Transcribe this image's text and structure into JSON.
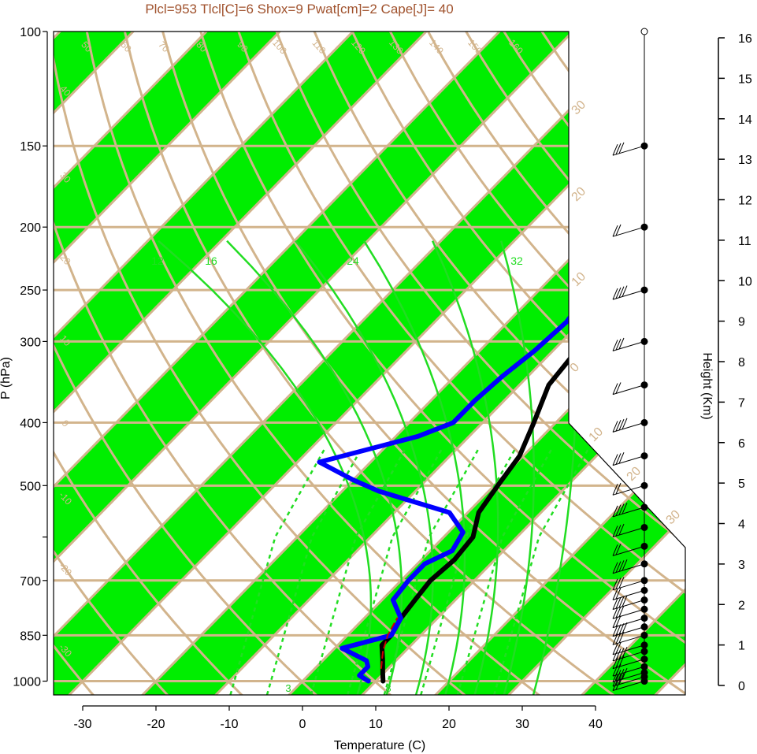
{
  "header": {
    "title": "Plcl=953 Tlcl[C]=6 Shox=9 Pwat[cm]=2 Cape[J]= 40"
  },
  "colors": {
    "stripe": "#00ee00",
    "isoline": "#d2b48c",
    "temperature": "#000000",
    "dewpoint": "#0000ff",
    "parcel": "#cc0000",
    "moist_adiabat": "#22dd22",
    "mixing_ratio": "#22dd22",
    "title": "#a0522d"
  },
  "chart_data": {
    "type": "line",
    "title": "Plcl=953 Tlcl[C]=6 Shox=9 Pwat[cm]=2 Cape[J]= 40",
    "xlabel": "Temperature (C)",
    "ylabel": "P (hPa)",
    "y2label": "Height (Km)",
    "xlim": [
      -34,
      36
    ],
    "ylim": [
      1050,
      100
    ],
    "y_scale": "log",
    "x_ticks": [
      "-30",
      "-20",
      "-10",
      "0",
      "10",
      "20",
      "30",
      "40"
    ],
    "y_ticks": [
      {
        "p": 1000,
        "label": "1000"
      },
      {
        "p": 850,
        "label": "850"
      },
      {
        "p": 700,
        "label": "700"
      },
      {
        "p": 600,
        "label": ""
      },
      {
        "p": 500,
        "label": "500"
      },
      {
        "p": 400,
        "label": "400"
      },
      {
        "p": 300,
        "label": "300"
      },
      {
        "p": 250,
        "label": "250"
      },
      {
        "p": 200,
        "label": "200"
      },
      {
        "p": 150,
        "label": "150"
      },
      {
        "p": 100,
        "label": "100"
      }
    ],
    "height_ticks": [
      "0",
      "1",
      "2",
      "3",
      "4",
      "5",
      "6",
      "7",
      "8",
      "9",
      "10",
      "11",
      "12",
      "13",
      "14",
      "15",
      "16"
    ],
    "isotherm_labels": [
      "50",
      "60",
      "70",
      "80",
      "90",
      "100",
      "110",
      "120",
      "130",
      "140",
      "150",
      "160"
    ],
    "isotherm_side_labels": [
      "40",
      "30",
      "20",
      "10",
      "0",
      "-10",
      "-20",
      "-30"
    ],
    "isotherm_right_labels": [
      "30",
      "20",
      "10",
      "0",
      "10",
      "20",
      "30"
    ],
    "mixing_labels": [
      "3",
      "8"
    ],
    "moist_labels": [
      "12",
      "16",
      "24",
      "32"
    ],
    "series": [
      {
        "name": "temperature",
        "points": [
          [
            11,
            1000
          ],
          [
            10,
            975
          ],
          [
            8,
            925
          ],
          [
            6,
            880
          ],
          [
            6,
            850
          ],
          [
            5,
            800
          ],
          [
            4.5,
            750
          ],
          [
            4,
            700
          ],
          [
            4.5,
            650
          ],
          [
            4,
            600
          ],
          [
            1.5,
            550
          ],
          [
            0.5,
            500
          ],
          [
            -0.5,
            450
          ],
          [
            -3,
            400
          ],
          [
            -6,
            350
          ],
          [
            -7,
            300
          ],
          [
            -6,
            270
          ],
          [
            -5,
            250
          ],
          [
            -3,
            230
          ],
          [
            -1,
            215
          ],
          [
            0.5,
            190
          ],
          [
            2,
            170
          ],
          [
            3,
            150
          ],
          [
            4.5,
            140
          ],
          [
            5.5,
            130
          ],
          [
            6.5,
            120
          ],
          [
            8,
            110
          ]
        ]
      },
      {
        "name": "dewpoint",
        "points": [
          [
            9,
            1000
          ],
          [
            7,
            980
          ],
          [
            7,
            950
          ],
          [
            6,
            930
          ],
          [
            1,
            890
          ],
          [
            6,
            850
          ],
          [
            5,
            800
          ],
          [
            1.5,
            750
          ],
          [
            1,
            700
          ],
          [
            1,
            660
          ],
          [
            3,
            630
          ],
          [
            2,
            590
          ],
          [
            -2.5,
            550
          ],
          [
            -15,
            510
          ],
          [
            -20,
            490
          ],
          [
            -27,
            460
          ],
          [
            -17,
            420
          ],
          [
            -14,
            400
          ],
          [
            -14,
            370
          ],
          [
            -13.5,
            340
          ],
          [
            -12.5,
            310
          ],
          [
            -12,
            280
          ],
          [
            -13,
            250
          ],
          [
            -14,
            225
          ],
          [
            -16,
            205
          ],
          [
            -18,
            195
          ],
          [
            -18,
            170
          ],
          [
            -15,
            160
          ],
          [
            -11,
            140
          ],
          [
            -6,
            120
          ],
          [
            -1,
            110
          ]
        ]
      },
      {
        "name": "parcel",
        "points": [
          [
            9,
            955
          ],
          [
            7,
            900
          ],
          [
            5.5,
            850
          ],
          [
            4.5,
            800
          ]
        ]
      }
    ],
    "wind_levels_hpa": [
      1000,
      985,
      970,
      950,
      925,
      900,
      880,
      850,
      825,
      800,
      775,
      750,
      725,
      700,
      660,
      620,
      580,
      540,
      500,
      450,
      400,
      350,
      300,
      250,
      200,
      150,
      100
    ]
  }
}
